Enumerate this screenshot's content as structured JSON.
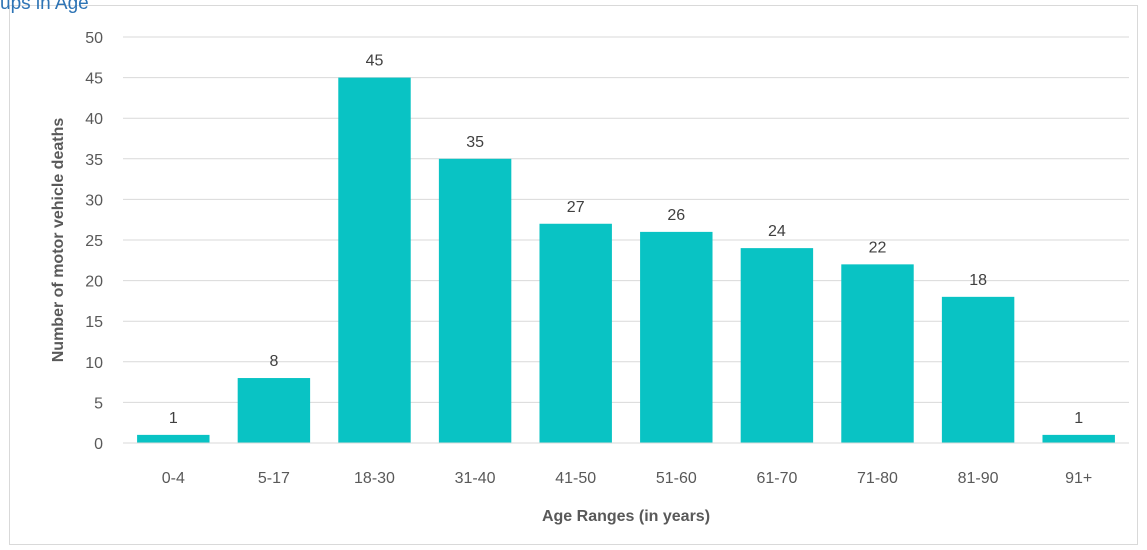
{
  "caption": "ups in Age",
  "chart_data": {
    "type": "bar",
    "categories": [
      "0-4",
      "5-17",
      "18-30",
      "31-40",
      "41-50",
      "51-60",
      "61-70",
      "71-80",
      "81-90",
      "91+"
    ],
    "values": [
      1,
      8,
      45,
      35,
      27,
      26,
      24,
      22,
      18,
      1
    ],
    "xlabel": "Age Ranges (in years)",
    "ylabel": "Number of motor vehicle deaths",
    "ylim": [
      0,
      50
    ],
    "yticks": [
      0,
      5,
      10,
      15,
      20,
      25,
      30,
      35,
      40,
      45,
      50
    ],
    "grid": true,
    "data_labels": true,
    "legend": "none",
    "bar_color": "#09c3c4",
    "grid_color": "#d9d9d9"
  }
}
